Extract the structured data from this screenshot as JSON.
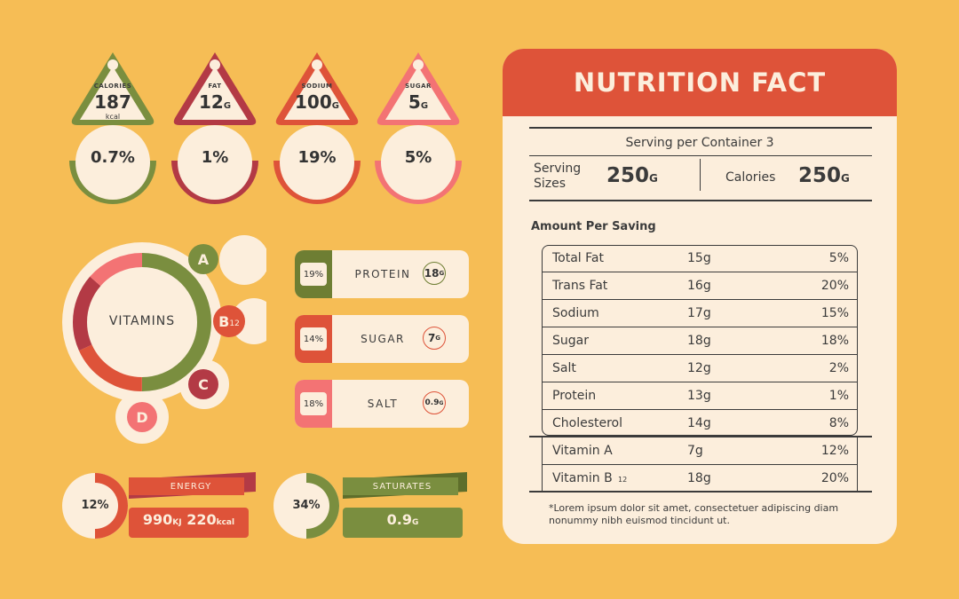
{
  "tags": [
    {
      "label": "CALORIES",
      "value": "187",
      "unit": "kcal",
      "value_suffix": "",
      "percent": "0.7%",
      "color": "#7A8E3F"
    },
    {
      "label": "FAT",
      "value": "12",
      "unit": "",
      "value_suffix": "G",
      "percent": "1%",
      "color": "#B33A45"
    },
    {
      "label": "SODIUM",
      "value": "100",
      "unit": "",
      "value_suffix": "G",
      "percent": "19%",
      "color": "#DE5339"
    },
    {
      "label": "SUGAR",
      "value": "5",
      "unit": "",
      "value_suffix": "G",
      "percent": "5%",
      "color": "#F37374"
    }
  ],
  "vitamins": {
    "title": "VITAMINS",
    "badges": {
      "a": "A",
      "b": "B",
      "b_sub": "12",
      "c": "C",
      "d": "D"
    }
  },
  "nutrients": [
    {
      "percent": "19%",
      "name": "PROTEIN",
      "amount": "18",
      "unit": "G",
      "color": "#6E7E33"
    },
    {
      "percent": "14%",
      "name": "SUGAR",
      "amount": "7",
      "unit": "G",
      "color": "#DE5339"
    },
    {
      "percent": "18%",
      "name": "SALT",
      "amount": "0.9",
      "unit": "G",
      "color": "#F37374"
    }
  ],
  "energy": {
    "percent": "12%",
    "label": "ENERGY",
    "kj": "990",
    "kj_unit": "KJ",
    "kcal": "220",
    "kcal_unit": "kcal",
    "value": 0.12
  },
  "saturates": {
    "percent": "34%",
    "label": "SATURATES",
    "amount": "0.9",
    "unit": "G",
    "value": 0.34
  },
  "card": {
    "title": "NUTRITION FACT",
    "serving_per_container": "Serving per Container 3",
    "serving_sizes_label_1": "Serving",
    "serving_sizes_label_2": "Sizes",
    "serving_sizes_value": "250",
    "serving_sizes_unit": "G",
    "calories_label": "Calories",
    "calories_value": "250",
    "calories_unit": "G",
    "amount_heading": "Amount Per Saving",
    "rows": [
      {
        "name": "Total Fat",
        "amount": "15g",
        "percent": "5%"
      },
      {
        "name": "Trans Fat",
        "amount": "16g",
        "percent": "20%"
      },
      {
        "name": "Sodium",
        "amount": "17g",
        "percent": "15%"
      },
      {
        "name": "Sugar",
        "amount": "18g",
        "percent": "18%"
      },
      {
        "name": "Salt",
        "amount": "12g",
        "percent": "2%"
      },
      {
        "name": "Protein",
        "amount": "13g",
        "percent": "1%"
      },
      {
        "name": "Cholesterol",
        "amount": "14g",
        "percent": "8%"
      },
      {
        "name": "Vitamin A",
        "amount": "7g",
        "percent": "12%"
      },
      {
        "name": "Vitamin B",
        "name_sub": "12",
        "amount": "18g",
        "percent": "20%"
      }
    ],
    "footnote_1": "*Lorem ipsum dolor sit amet, consectetuer adipiscing diam",
    "footnote_2": "nonummy nibh euismod tincidunt ut."
  },
  "colors": {
    "background": "#F6BD55",
    "cream": "#FCEEDC",
    "green": "#7A8E3F",
    "red": "#DE5339",
    "maroon": "#B33A45",
    "pink": "#F37374"
  }
}
